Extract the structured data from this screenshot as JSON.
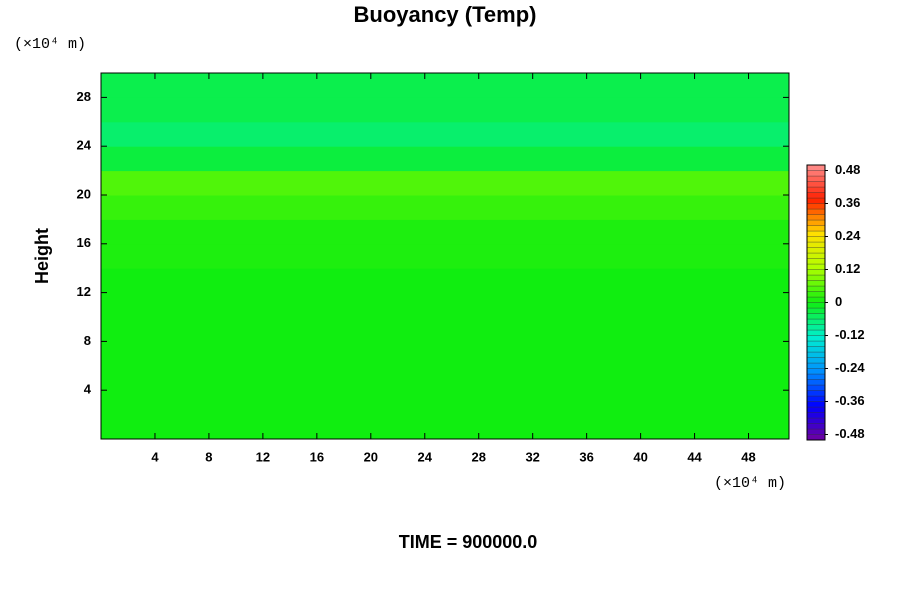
{
  "chart_data": {
    "type": "heatmap",
    "title": "Buoyancy (Temp)",
    "y_label": "Height",
    "y_unit": "(×10⁴ m)",
    "x_unit": "(×10⁴ m)",
    "footer": "TIME = 900000.0",
    "xlim": [
      0,
      51
    ],
    "xticks": [
      4,
      8,
      12,
      16,
      20,
      24,
      28,
      32,
      36,
      40,
      44,
      48
    ],
    "ylim": [
      0,
      30
    ],
    "yticks": [
      4,
      8,
      12,
      16,
      20,
      24,
      28
    ],
    "y": [
      1,
      3,
      5,
      7,
      9,
      11,
      13,
      15,
      17,
      19,
      21,
      23,
      25,
      27,
      29
    ],
    "values": [
      0,
      0,
      0,
      0,
      0,
      0,
      0,
      0.01,
      0.01,
      0.03,
      0.05,
      -0.03,
      -0.06,
      -0.04,
      -0.04
    ],
    "clim": [
      -0.5,
      0.5
    ],
    "cticks": [
      -0.48,
      -0.36,
      -0.24,
      -0.12,
      0,
      0.12,
      0.24,
      0.36,
      0.48
    ],
    "colormap": [
      "#7000a0",
      "#0000ff",
      "#0090ff",
      "#00f0d0",
      "#10ee10",
      "#b0ff00",
      "#ffe000",
      "#ff2000",
      "#ff9090"
    ]
  }
}
